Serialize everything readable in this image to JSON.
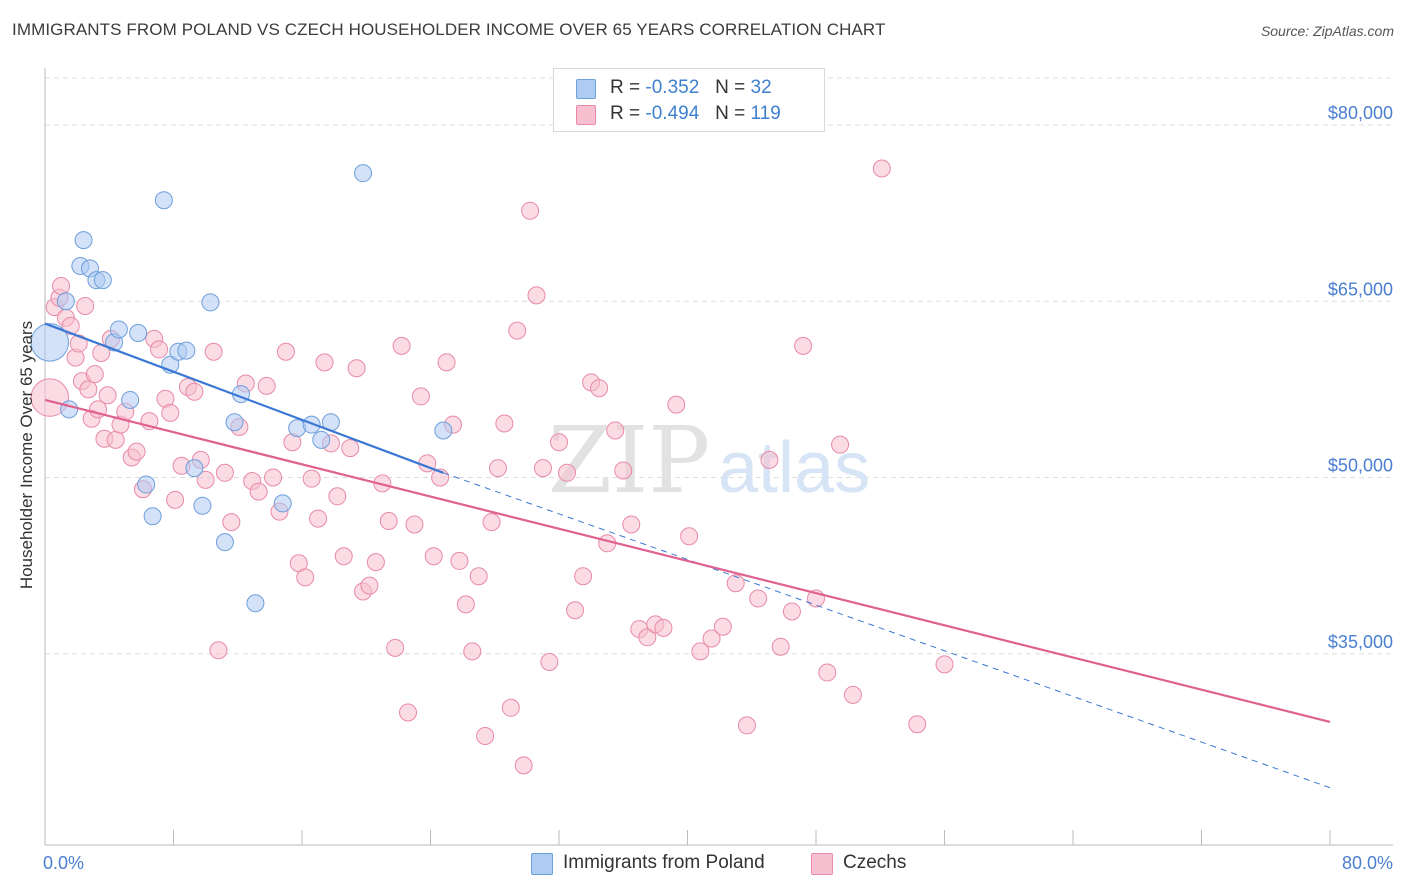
{
  "title": "IMMIGRANTS FROM POLAND VS CZECH HOUSEHOLDER INCOME OVER 65 YEARS CORRELATION CHART",
  "source": "Source: ZipAtlas.com",
  "watermark": {
    "zip": "ZIP",
    "atlas": "atlas"
  },
  "legend": {
    "r_label": "R =",
    "n_label": "N =",
    "rows": [
      {
        "r": "-0.352",
        "n": "32",
        "color": "#aecbf2"
      },
      {
        "r": "-0.494",
        "n": "119",
        "color": "#f7bfd0"
      }
    ]
  },
  "chart_data": {
    "type": "scatter",
    "title": "IMMIGRANTS FROM POLAND VS CZECH HOUSEHOLDER INCOME OVER 65 YEARS CORRELATION CHART",
    "xlabel": "",
    "ylabel": "Householder Income Over 65 years",
    "x_tick_labels": [
      "0.0%",
      "80.0%"
    ],
    "y_tick_labels": [
      "$80,000",
      "$65,000",
      "$50,000",
      "$35,000"
    ],
    "xlim": [
      0,
      80
    ],
    "ylim": [
      20000,
      84000
    ],
    "grid": true,
    "legend_position": "top-center",
    "series": [
      {
        "name": "Immigrants from Poland",
        "color": "#aecbf2",
        "edge": "#6e9fdc",
        "trend": {
          "x0": 0,
          "y0": 63100,
          "x1": 24.8,
          "y1": 50400,
          "dashed_to_x": 80,
          "dashed_to_y": 23600,
          "color": "#3a78d4"
        },
        "points": [
          [
            0.3,
            61500,
            2.2
          ],
          [
            1.3,
            65000,
            1
          ],
          [
            1.5,
            55800,
            1
          ],
          [
            2.2,
            68000,
            1
          ],
          [
            2.4,
            70200,
            1
          ],
          [
            2.8,
            67800,
            1
          ],
          [
            3.2,
            66800,
            1
          ],
          [
            3.6,
            66800,
            1
          ],
          [
            4.3,
            61500,
            1
          ],
          [
            4.6,
            62600,
            1
          ],
          [
            5.3,
            56600,
            1
          ],
          [
            5.8,
            62300,
            1
          ],
          [
            6.3,
            49400,
            1
          ],
          [
            6.7,
            46700,
            1
          ],
          [
            7.4,
            73600,
            1
          ],
          [
            7.8,
            59600,
            1
          ],
          [
            8.3,
            60700,
            1
          ],
          [
            8.8,
            60800,
            1
          ],
          [
            9.3,
            50800,
            1
          ],
          [
            9.8,
            47600,
            1
          ],
          [
            10.3,
            64900,
            1
          ],
          [
            11.2,
            44500,
            1
          ],
          [
            11.8,
            54700,
            1
          ],
          [
            12.2,
            57100,
            1
          ],
          [
            13.1,
            39300,
            1
          ],
          [
            14.8,
            47800,
            1
          ],
          [
            15.7,
            54200,
            1
          ],
          [
            16.6,
            54500,
            1
          ],
          [
            17.2,
            53200,
            1
          ],
          [
            17.8,
            54700,
            1
          ],
          [
            19.8,
            75900,
            1
          ],
          [
            24.8,
            54000,
            1
          ]
        ]
      },
      {
        "name": "Czechs",
        "color": "#f7bfd0",
        "edge": "#e88aa8",
        "trend": {
          "x0": 0,
          "y0": 56600,
          "x1": 80,
          "y1": 29200,
          "color": "#e06090"
        },
        "points": [
          [
            0.3,
            56800,
            2.2
          ],
          [
            0.6,
            64500,
            1
          ],
          [
            0.9,
            65300,
            1
          ],
          [
            1.0,
            66300,
            1
          ],
          [
            1.3,
            63600,
            1
          ],
          [
            1.6,
            62900,
            1
          ],
          [
            1.9,
            60200,
            1
          ],
          [
            2.1,
            61400,
            1
          ],
          [
            2.3,
            58200,
            1
          ],
          [
            2.5,
            64600,
            1
          ],
          [
            2.7,
            57500,
            1
          ],
          [
            2.9,
            55000,
            1
          ],
          [
            3.1,
            58800,
            1
          ],
          [
            3.3,
            55800,
            1
          ],
          [
            3.5,
            60600,
            1
          ],
          [
            3.7,
            53300,
            1
          ],
          [
            3.9,
            57000,
            1
          ],
          [
            4.1,
            61800,
            1
          ],
          [
            4.4,
            53200,
            1
          ],
          [
            4.7,
            54500,
            1
          ],
          [
            5.0,
            55600,
            1
          ],
          [
            5.4,
            51700,
            1
          ],
          [
            5.7,
            52200,
            1
          ],
          [
            6.1,
            49000,
            1
          ],
          [
            6.5,
            54800,
            1
          ],
          [
            6.8,
            61800,
            1
          ],
          [
            7.1,
            60900,
            1
          ],
          [
            7.5,
            56700,
            1
          ],
          [
            7.8,
            55500,
            1
          ],
          [
            8.1,
            48100,
            1
          ],
          [
            8.5,
            51000,
            1
          ],
          [
            8.9,
            57700,
            1
          ],
          [
            9.3,
            57300,
            1
          ],
          [
            9.7,
            51500,
            1
          ],
          [
            10.0,
            49800,
            1
          ],
          [
            10.5,
            60700,
            1
          ],
          [
            10.8,
            35300,
            1
          ],
          [
            11.2,
            50400,
            1
          ],
          [
            11.6,
            46200,
            1
          ],
          [
            12.1,
            54300,
            1
          ],
          [
            12.5,
            58000,
            1
          ],
          [
            12.9,
            49700,
            1
          ],
          [
            13.3,
            48800,
            1
          ],
          [
            13.8,
            57800,
            1
          ],
          [
            14.2,
            50000,
            1
          ],
          [
            14.6,
            47100,
            1
          ],
          [
            15.0,
            60700,
            1
          ],
          [
            15.4,
            53000,
            1
          ],
          [
            15.8,
            42700,
            1
          ],
          [
            16.2,
            41500,
            1
          ],
          [
            16.6,
            49900,
            1
          ],
          [
            17.0,
            46500,
            1
          ],
          [
            17.4,
            59800,
            1
          ],
          [
            17.8,
            52900,
            1
          ],
          [
            18.2,
            48400,
            1
          ],
          [
            18.6,
            43300,
            1
          ],
          [
            19.0,
            52500,
            1
          ],
          [
            19.4,
            59300,
            1
          ],
          [
            19.8,
            40300,
            1
          ],
          [
            20.2,
            40800,
            1
          ],
          [
            20.6,
            42800,
            1
          ],
          [
            21.0,
            49500,
            1
          ],
          [
            21.4,
            46300,
            1
          ],
          [
            21.8,
            35500,
            1
          ],
          [
            22.2,
            61200,
            1
          ],
          [
            22.6,
            30000,
            1
          ],
          [
            23.0,
            46000,
            1
          ],
          [
            23.4,
            56900,
            1
          ],
          [
            23.8,
            51200,
            1
          ],
          [
            24.2,
            43300,
            1
          ],
          [
            24.6,
            50000,
            1
          ],
          [
            25.0,
            59800,
            1
          ],
          [
            25.4,
            54500,
            1
          ],
          [
            25.8,
            42900,
            1
          ],
          [
            26.2,
            39200,
            1
          ],
          [
            26.6,
            35200,
            1
          ],
          [
            27.0,
            41600,
            1
          ],
          [
            27.4,
            28000,
            1
          ],
          [
            27.8,
            46200,
            1
          ],
          [
            28.2,
            50800,
            1
          ],
          [
            28.6,
            54600,
            1
          ],
          [
            29.0,
            30400,
            1
          ],
          [
            29.4,
            62500,
            1
          ],
          [
            29.8,
            25500,
            1
          ],
          [
            30.2,
            72700,
            1
          ],
          [
            30.6,
            65500,
            1
          ],
          [
            31.0,
            50800,
            1
          ],
          [
            31.4,
            34300,
            1
          ],
          [
            32.0,
            53000,
            1
          ],
          [
            32.5,
            50400,
            1
          ],
          [
            33.0,
            38700,
            1
          ],
          [
            33.5,
            41600,
            1
          ],
          [
            34.0,
            58100,
            1
          ],
          [
            34.5,
            57600,
            1
          ],
          [
            35.0,
            44400,
            1
          ],
          [
            35.5,
            54000,
            1
          ],
          [
            36.0,
            50600,
            1
          ],
          [
            36.5,
            46000,
            1
          ],
          [
            37.0,
            37100,
            1
          ],
          [
            37.5,
            36400,
            1
          ],
          [
            38.0,
            37500,
            1
          ],
          [
            38.5,
            37200,
            1
          ],
          [
            39.3,
            56200,
            1
          ],
          [
            40.1,
            45000,
            1
          ],
          [
            40.8,
            35200,
            1
          ],
          [
            41.5,
            36300,
            1
          ],
          [
            42.2,
            37300,
            1
          ],
          [
            43.0,
            41000,
            1
          ],
          [
            43.7,
            28900,
            1
          ],
          [
            44.4,
            39700,
            1
          ],
          [
            45.1,
            51500,
            1
          ],
          [
            45.8,
            35600,
            1
          ],
          [
            46.5,
            38600,
            1
          ],
          [
            47.2,
            61200,
            1
          ],
          [
            48.0,
            39700,
            1
          ],
          [
            48.7,
            33400,
            1
          ],
          [
            49.5,
            52800,
            1
          ],
          [
            50.3,
            31500,
            1
          ],
          [
            52.1,
            76300,
            1
          ],
          [
            54.3,
            29000,
            1
          ],
          [
            56.0,
            34100,
            1
          ]
        ]
      }
    ]
  }
}
